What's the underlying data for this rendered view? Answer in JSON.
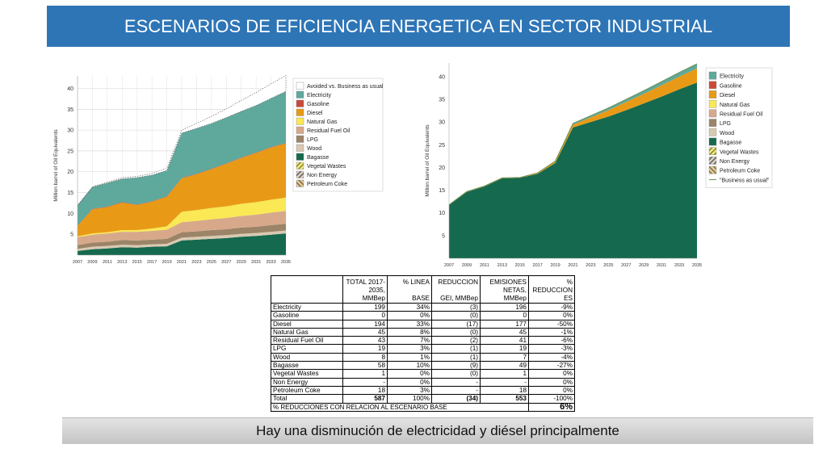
{
  "header": {
    "title": "ESCENARIOS DE EFICIENCIA ENERGETICA EN SECTOR INDUSTRIAL"
  },
  "chart_data": [
    {
      "type": "area",
      "ylabel": "Million barrel of Oil Equivalents",
      "ylim": [
        0,
        43
      ],
      "yticks": [
        5,
        10,
        15,
        20,
        25,
        30,
        35,
        40
      ],
      "x": [
        2007,
        2009,
        2011,
        2013,
        2015,
        2017,
        2019,
        2021,
        2023,
        2025,
        2027,
        2029,
        2031,
        2033,
        2035
      ],
      "grid": true,
      "legend_position": "right",
      "series": [
        {
          "name": "Bagasse",
          "color": "#15694e",
          "values": [
            1.0,
            1.4,
            1.6,
            1.9,
            1.8,
            2.0,
            2.1,
            3.5,
            3.7,
            3.9,
            4.1,
            4.4,
            4.6,
            4.9,
            5.2
          ]
        },
        {
          "name": "Wood",
          "color": "#d9c9b2",
          "values": [
            0.5,
            0.6,
            0.6,
            0.6,
            0.6,
            0.6,
            0.6,
            0.7,
            0.7,
            0.7,
            0.7,
            0.7,
            0.7,
            0.7,
            0.7
          ]
        },
        {
          "name": "LPG",
          "color": "#9b8467",
          "values": [
            0.9,
            1.0,
            1.0,
            1.1,
            1.1,
            1.1,
            1.2,
            1.3,
            1.3,
            1.4,
            1.4,
            1.5,
            1.5,
            1.6,
            1.6
          ]
        },
        {
          "name": "Residual Fuel Oil",
          "color": "#d7a98a",
          "values": [
            1.9,
            1.9,
            2.0,
            2.0,
            2.1,
            2.1,
            2.2,
            2.4,
            2.5,
            2.6,
            2.7,
            2.8,
            2.9,
            3.0,
            3.1
          ]
        },
        {
          "name": "Natural Gas",
          "color": "#fae855",
          "values": [
            0.2,
            0.3,
            0.3,
            0.4,
            0.4,
            0.6,
            0.8,
            2.5,
            2.6,
            2.7,
            2.8,
            2.9,
            3.0,
            3.1,
            3.2
          ]
        },
        {
          "name": "Diesel",
          "color": "#e89a16",
          "values": [
            2.5,
            5.8,
            6.0,
            6.6,
            6.0,
            6.4,
            7.1,
            8.0,
            8.6,
            9.3,
            10.2,
            11.0,
            11.8,
            12.5,
            13.0
          ]
        },
        {
          "name": "Gasoline",
          "color": "#c94a3a",
          "values": [
            0.1,
            0.1,
            0.1,
            0.1,
            0.1,
            0.1,
            0.1,
            0.1,
            0.1,
            0.1,
            0.1,
            0.1,
            0.1,
            0.1,
            0.1
          ]
        },
        {
          "name": "Electricity",
          "color": "#5fa89c",
          "values": [
            4.8,
            5.2,
            5.7,
            5.6,
            6.5,
            6.3,
            6.2,
            10.8,
            10.9,
            10.9,
            11.0,
            11.1,
            11.3,
            11.7,
            12.4
          ]
        },
        {
          "name": "Avoided vs. Business as usual",
          "color": "#ffffff",
          "values": [
            0.0,
            0.1,
            0.2,
            0.3,
            0.3,
            0.4,
            0.5,
            0.7,
            1.2,
            1.7,
            2.1,
            2.6,
            3.1,
            3.5,
            3.8
          ]
        }
      ],
      "legend_entries": [
        "Avoided vs. Business as usual",
        "Electricity",
        "Gasoline",
        "Diesel",
        "Natural Gas",
        "Residual Fuel Oil",
        "LPG",
        "Wood",
        "Bagasse",
        "Vegetal Wastes",
        "Non Energy",
        "Petroleum Coke"
      ]
    },
    {
      "type": "area",
      "ylabel": "Million barrel of Oil Equivalents",
      "ylim": [
        0,
        43
      ],
      "yticks": [
        5,
        10,
        15,
        20,
        25,
        30,
        35,
        40
      ],
      "x": [
        2007,
        2009,
        2011,
        2013,
        2015,
        2017,
        2019,
        2021,
        2023,
        2025,
        2027,
        2029,
        2031,
        2033,
        2035
      ],
      "grid": false,
      "legend_position": "right",
      "series": [
        {
          "name": "Bagasse",
          "color": "#15694e",
          "values": [
            11.7,
            14.6,
            15.8,
            17.6,
            17.7,
            18.6,
            21.0,
            28.8,
            30.0,
            31.2,
            32.6,
            34.1,
            35.6,
            37.2,
            38.7
          ]
        },
        {
          "name": "Diesel",
          "color": "#e89a16",
          "values": [
            0.1,
            0.1,
            0.1,
            0.1,
            0.1,
            0.2,
            0.3,
            0.6,
            1.0,
            1.4,
            1.8,
            2.1,
            2.5,
            2.8,
            3.1
          ]
        },
        {
          "name": "Electricity",
          "color": "#5fa89c",
          "values": [
            0.0,
            0.0,
            0.0,
            0.0,
            0.0,
            0.0,
            0.1,
            0.3,
            0.4,
            0.5,
            0.6,
            0.7,
            0.8,
            0.9,
            1.0
          ]
        }
      ],
      "business_as_usual": [
        11.8,
        14.7,
        15.9,
        17.7,
        17.8,
        18.8,
        21.4,
        29.7,
        31.4,
        33.1,
        35.0,
        36.9,
        38.9,
        40.9,
        42.8
      ],
      "legend_entries": [
        "Electricity",
        "Gasoline",
        "Diesel",
        "Natural Gas",
        "Residual Fuel Oil",
        "LPG",
        "Wood",
        "Bagasse",
        "Vegetal Wastes",
        "Non Energy",
        "Petroleum Coke",
        "\"Business as usual\""
      ]
    }
  ],
  "legend_colors": {
    "Avoided vs. Business as usual": "#ffffff",
    "Electricity": "#5fa89c",
    "Gasoline": "#c94a3a",
    "Diesel": "#e89a16",
    "Natural Gas": "#fae855",
    "Residual Fuel Oil": "#d7a98a",
    "LPG": "#9b8467",
    "Wood": "#d9c9b2",
    "Bagasse": "#15694e",
    "Vegetal Wastes": "#d8d05a",
    "Non Energy": "#9a8f86",
    "Petroleum Coke": "#a08a64",
    "\"Business as usual\"": "#6b8f4e"
  },
  "table": {
    "headers": [
      "",
      "TOTAL 2017-2035, MMBep",
      "% LINEA BASE",
      "REDUCCION GEI, MMBep",
      "EMISIONES NETAS, MMBep",
      "% REDUCCIONES"
    ],
    "header_lines": [
      [
        "",
        "",
        "",
        "",
        "",
        ""
      ],
      [
        "",
        "TOTAL 2017-",
        "% LINEA",
        "REDUCCION",
        "EMISIONES",
        "%"
      ],
      [
        "",
        "2035,",
        "",
        "",
        "NETAS,",
        "REDUCCION"
      ],
      [
        "",
        "MMBep",
        "BASE",
        "GEI, MMBep",
        "MMBep",
        "ES"
      ]
    ],
    "rows": [
      [
        "Electricity",
        "199",
        "34%",
        "(3)",
        "196",
        "-9%"
      ],
      [
        "Gasoline",
        "0",
        "0%",
        "(0)",
        "0",
        "0%"
      ],
      [
        "Diesel",
        "194",
        "33%",
        "(17)",
        "177",
        "-50%"
      ],
      [
        "Natural Gas",
        "45",
        "8%",
        "(0)",
        "45",
        "-1%"
      ],
      [
        "Residual Fuel Oil",
        "43",
        "7%",
        "(2)",
        "41",
        "-6%"
      ],
      [
        "LPG",
        "19",
        "3%",
        "(1)",
        "19",
        "-3%"
      ],
      [
        "Wood",
        "8",
        "1%",
        "(1)",
        "7",
        "-4%"
      ],
      [
        "Bagasse",
        "58",
        "10%",
        "(9)",
        "49",
        "-27%"
      ],
      [
        "Vegetal Wastes",
        "1",
        "0%",
        "(0)",
        "1",
        "0%"
      ],
      [
        "Non Energy",
        "-",
        "0%",
        "-",
        "-",
        "0%"
      ],
      [
        "Petroleum Coke",
        "18",
        "3%",
        "-",
        "18",
        "0%"
      ]
    ],
    "total": [
      "Total",
      "587",
      "100%",
      "(34)",
      "553",
      "-100%"
    ],
    "footer_label": "% REDUCCIONES CON RELACION AL ESCENARIO BASE",
    "footer_value": "6%"
  },
  "conclusion": "Hay una disminución de electricidad y diésel principalmente"
}
